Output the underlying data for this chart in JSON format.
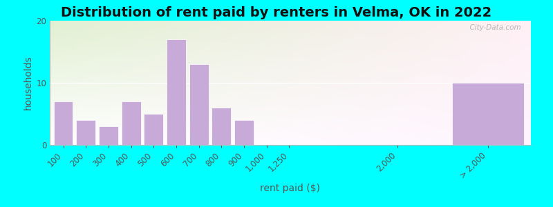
{
  "title": "Distribution of rent paid by renters in Velma, OK in 2022",
  "xlabel": "rent paid ($)",
  "ylabel": "households",
  "background_outer": "#00FFFF",
  "bar_color": "#c8aad8",
  "bar_edgecolor": "#ffffff",
  "ylim": [
    0,
    20
  ],
  "yticks": [
    0,
    10,
    20
  ],
  "bars_left": {
    "labels": [
      "100",
      "200",
      "300",
      "400",
      "500",
      "600",
      "700",
      "800",
      "900",
      "1,000",
      "1,250"
    ],
    "values": [
      7,
      4,
      3,
      7,
      5,
      17,
      13,
      6,
      4,
      0,
      0
    ]
  },
  "bar_2000_label": "2,000",
  "bar_gt2000_label": "> 2,000",
  "bar_gt2000_value": 10,
  "watermark": "  City-Data.com",
  "title_fontsize": 14,
  "axis_label_fontsize": 10,
  "tick_fontsize": 8.5
}
